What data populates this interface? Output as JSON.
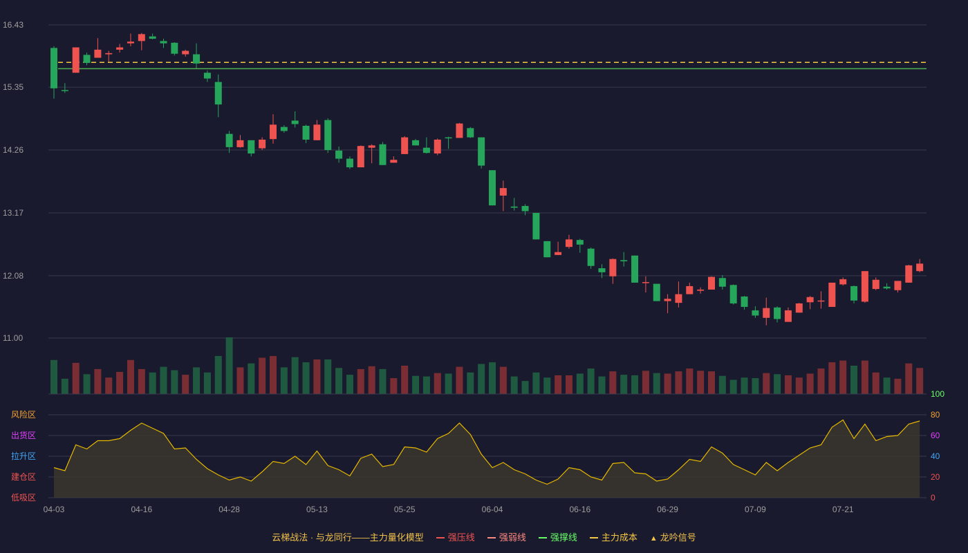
{
  "chart_data": {
    "type": "candlestick",
    "title": "",
    "price_axis": {
      "min": 11.0,
      "max": 16.43,
      "ticks": [
        11.0,
        12.08,
        13.17,
        14.26,
        15.35,
        16.43
      ]
    },
    "x_tick_labels": [
      {
        "index": 0,
        "label": "04-03"
      },
      {
        "index": 8,
        "label": "04-16"
      },
      {
        "index": 16,
        "label": "04-28"
      },
      {
        "index": 24,
        "label": "05-13"
      },
      {
        "index": 32,
        "label": "05-25"
      },
      {
        "index": 40,
        "label": "06-04"
      },
      {
        "index": 48,
        "label": "06-16"
      },
      {
        "index": 56,
        "label": "06-29"
      },
      {
        "index": 64,
        "label": "07-09"
      },
      {
        "index": 72,
        "label": "07-21"
      }
    ],
    "reference_lines": [
      {
        "name": "主力成本",
        "value": 15.78,
        "color": "#f5c842",
        "style": "dashed"
      },
      {
        "name": "强撑线",
        "value": 15.67,
        "color": "#4caf50",
        "style": "solid"
      }
    ],
    "candles": [
      [
        16.03,
        15.33,
        16.06,
        15.15
      ],
      [
        15.3,
        15.29,
        15.42,
        15.25
      ],
      [
        15.6,
        16.04,
        16.04,
        15.6
      ],
      [
        15.91,
        15.77,
        15.95,
        15.73
      ],
      [
        15.86,
        16.0,
        16.2,
        15.86
      ],
      [
        15.92,
        15.94,
        15.98,
        15.79
      ],
      [
        16.0,
        16.04,
        16.1,
        15.95
      ],
      [
        16.11,
        16.14,
        16.28,
        16.06
      ],
      [
        16.15,
        16.27,
        16.29,
        15.99
      ],
      [
        16.23,
        16.19,
        16.28,
        16.18
      ],
      [
        16.15,
        16.11,
        16.19,
        16.03
      ],
      [
        16.12,
        15.93,
        16.13,
        15.9
      ],
      [
        15.92,
        15.98,
        16.0,
        15.88
      ],
      [
        15.92,
        15.76,
        16.11,
        15.68
      ],
      [
        15.6,
        15.5,
        15.64,
        15.44
      ],
      [
        15.44,
        15.05,
        15.57,
        14.83
      ],
      [
        14.54,
        14.31,
        14.59,
        14.21
      ],
      [
        14.31,
        14.43,
        14.52,
        14.3
      ],
      [
        14.43,
        14.2,
        14.43,
        14.15
      ],
      [
        14.29,
        14.44,
        14.48,
        14.26
      ],
      [
        14.45,
        14.7,
        14.88,
        14.37
      ],
      [
        14.66,
        14.59,
        14.69,
        14.56
      ],
      [
        14.77,
        14.71,
        14.93,
        14.65
      ],
      [
        14.68,
        14.44,
        14.7,
        14.38
      ],
      [
        14.43,
        14.7,
        14.78,
        14.43
      ],
      [
        14.78,
        14.26,
        14.81,
        14.21
      ],
      [
        14.25,
        14.11,
        14.32,
        14.04
      ],
      [
        14.11,
        13.96,
        14.15,
        13.93
      ],
      [
        13.96,
        14.33,
        14.34,
        13.96
      ],
      [
        14.3,
        14.34,
        14.36,
        14.03
      ],
      [
        14.36,
        14.0,
        14.4,
        14.0
      ],
      [
        14.04,
        14.09,
        14.15,
        14.04
      ],
      [
        14.19,
        14.48,
        14.5,
        14.19
      ],
      [
        14.43,
        14.34,
        14.45,
        14.34
      ],
      [
        14.3,
        14.21,
        14.48,
        14.2
      ],
      [
        14.2,
        14.44,
        14.46,
        14.17
      ],
      [
        14.48,
        14.47,
        14.49,
        14.28
      ],
      [
        14.47,
        14.72,
        14.73,
        14.47
      ],
      [
        14.64,
        14.48,
        14.66,
        14.47
      ],
      [
        14.48,
        13.99,
        14.48,
        13.94
      ],
      [
        13.91,
        13.3,
        13.91,
        13.3
      ],
      [
        13.47,
        13.6,
        13.73,
        13.2
      ],
      [
        13.28,
        13.26,
        13.43,
        13.21
      ],
      [
        13.29,
        13.2,
        13.32,
        13.13
      ],
      [
        13.17,
        12.71,
        13.17,
        12.71
      ],
      [
        12.68,
        12.4,
        12.68,
        12.4
      ],
      [
        12.44,
        12.49,
        12.67,
        12.44
      ],
      [
        12.58,
        12.71,
        12.79,
        12.55
      ],
      [
        12.7,
        12.62,
        12.72,
        12.48
      ],
      [
        12.55,
        12.25,
        12.57,
        12.2
      ],
      [
        12.21,
        12.14,
        12.28,
        12.04
      ],
      [
        12.07,
        12.37,
        12.38,
        11.94
      ],
      [
        12.35,
        12.33,
        12.49,
        12.24
      ],
      [
        12.43,
        11.96,
        12.43,
        11.96
      ],
      [
        11.96,
        11.97,
        12.07,
        11.79
      ],
      [
        11.94,
        11.64,
        11.94,
        11.64
      ],
      [
        11.64,
        11.68,
        11.76,
        11.43
      ],
      [
        11.61,
        11.76,
        11.98,
        11.53
      ],
      [
        11.76,
        11.9,
        11.96,
        11.78
      ],
      [
        11.82,
        11.84,
        11.88,
        11.77
      ],
      [
        11.84,
        12.06,
        12.07,
        11.84
      ],
      [
        12.04,
        11.89,
        12.09,
        11.84
      ],
      [
        11.92,
        11.6,
        11.93,
        11.58
      ],
      [
        11.72,
        11.54,
        11.73,
        11.49
      ],
      [
        11.48,
        11.39,
        11.55,
        11.35
      ],
      [
        11.35,
        11.52,
        11.7,
        11.22
      ],
      [
        11.53,
        11.33,
        11.55,
        11.27
      ],
      [
        11.28,
        11.48,
        11.53,
        11.28
      ],
      [
        11.44,
        11.6,
        11.61,
        11.44
      ],
      [
        11.62,
        11.71,
        11.73,
        11.5
      ],
      [
        11.64,
        11.65,
        11.81,
        11.51
      ],
      [
        11.54,
        11.96,
        11.96,
        11.54
      ],
      [
        11.93,
        12.02,
        12.05,
        11.91
      ],
      [
        11.9,
        11.65,
        11.91,
        11.6
      ],
      [
        11.63,
        12.16,
        12.16,
        11.61
      ],
      [
        11.85,
        12.01,
        12.05,
        11.83
      ],
      [
        11.89,
        11.86,
        11.95,
        11.84
      ],
      [
        11.83,
        11.99,
        11.99,
        11.79
      ],
      [
        11.96,
        12.26,
        12.27,
        11.96
      ],
      [
        12.16,
        12.29,
        12.37,
        12.14
      ]
    ],
    "volume": [
      0.6,
      0.27,
      0.55,
      0.35,
      0.44,
      0.29,
      0.39,
      0.6,
      0.44,
      0.38,
      0.48,
      0.42,
      0.34,
      0.47,
      0.38,
      0.67,
      1.0,
      0.47,
      0.54,
      0.64,
      0.67,
      0.47,
      0.65,
      0.56,
      0.61,
      0.61,
      0.46,
      0.34,
      0.44,
      0.49,
      0.44,
      0.28,
      0.5,
      0.32,
      0.31,
      0.37,
      0.36,
      0.48,
      0.38,
      0.53,
      0.56,
      0.48,
      0.31,
      0.23,
      0.38,
      0.29,
      0.33,
      0.33,
      0.36,
      0.45,
      0.31,
      0.4,
      0.34,
      0.33,
      0.41,
      0.37,
      0.36,
      0.4,
      0.45,
      0.41,
      0.4,
      0.32,
      0.25,
      0.29,
      0.28,
      0.37,
      0.35,
      0.33,
      0.29,
      0.36,
      0.45,
      0.56,
      0.59,
      0.5,
      0.59,
      0.38,
      0.29,
      0.27,
      0.54,
      0.46
    ],
    "indicator": {
      "ticks": [
        0,
        20,
        40,
        60,
        80,
        100
      ],
      "zone_labels": [
        {
          "label": "风险区",
          "color": "#f0a030"
        },
        {
          "label": "出货区",
          "color": "#e040fb"
        },
        {
          "label": "拉升区",
          "color": "#42a5f5"
        },
        {
          "label": "建仓区",
          "color": "#ef5350"
        },
        {
          "label": "低吸区",
          "color": "#ef5350"
        }
      ],
      "values": [
        29,
        26,
        51,
        47,
        55,
        55,
        57,
        65,
        72,
        67,
        62,
        47,
        48,
        37,
        28,
        22,
        17,
        20,
        16,
        25,
        35,
        33,
        40,
        32,
        45,
        31,
        27,
        21,
        38,
        42,
        30,
        32,
        49,
        48,
        44,
        57,
        62,
        72,
        61,
        42,
        29,
        34,
        27,
        23,
        17,
        13,
        18,
        29,
        27,
        20,
        17,
        33,
        34,
        24,
        23,
        16,
        18,
        27,
        37,
        35,
        49,
        43,
        32,
        27,
        22,
        34,
        26,
        34,
        41,
        48,
        51,
        68,
        75,
        57,
        71,
        55,
        59,
        60,
        71,
        74
      ]
    },
    "legend": [
      {
        "label": "云梯战法 · 与龙同行——主力量化模型",
        "kind": "title",
        "color": "#f0c14b"
      },
      {
        "label": "强压线",
        "kind": "line",
        "color": "#ef5350"
      },
      {
        "label": "强弱线",
        "kind": "dashed",
        "color": "#ff8a80"
      },
      {
        "label": "强撑线",
        "kind": "line",
        "color": "#66ff66"
      },
      {
        "label": "主力成本",
        "kind": "dashed",
        "color": "#f5c842"
      },
      {
        "label": "龙吟信号",
        "kind": "triangle",
        "color": "#f0c14b"
      }
    ],
    "colors": {
      "background": "#1a1a2e",
      "grid": "#3a3a4e",
      "up": "#ef5350",
      "down": "#26a65b",
      "volume_up": "#7a2e33",
      "volume_down": "#1f5a40",
      "axis_text": "#9e9e9e",
      "indicator_line": "#e6b800",
      "indicator_fill": "#3b362c"
    }
  }
}
